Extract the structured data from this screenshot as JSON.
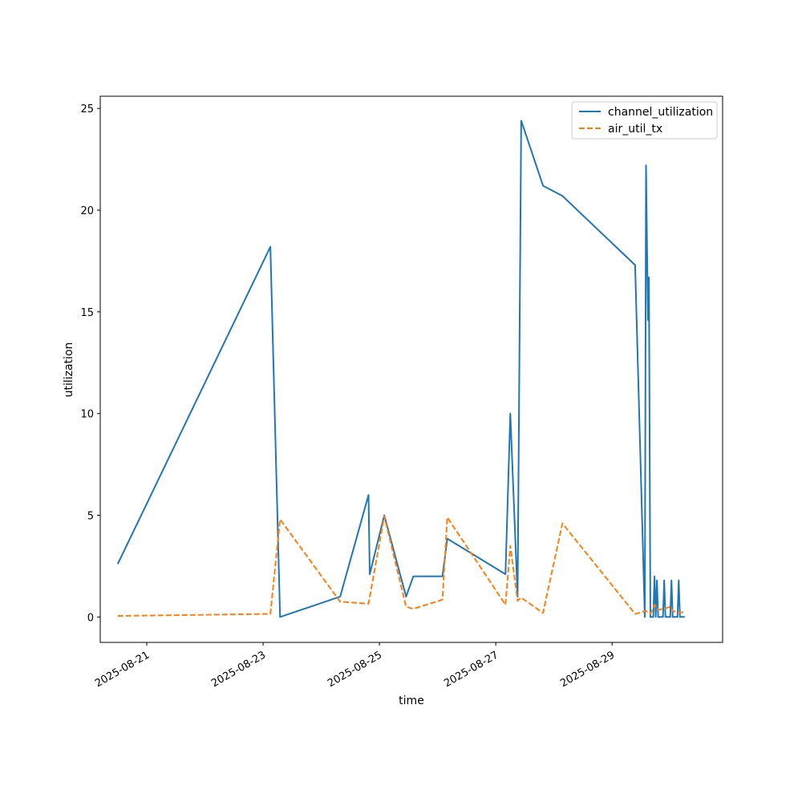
{
  "chart_data": {
    "type": "line",
    "title": "",
    "xlabel": "time",
    "ylabel": "utilization",
    "x_start": "2025-08-20",
    "x_end": "2025-08-30",
    "xlim": [
      "2025-08-20T04:48",
      "2025-08-30T21:36"
    ],
    "ylim": [
      -1.25,
      25.6
    ],
    "x_ticks": [
      "2025-08-21",
      "2025-08-23",
      "2025-08-25",
      "2025-08-27",
      "2025-08-29"
    ],
    "y_ticks": [
      0,
      5,
      10,
      15,
      20,
      25
    ],
    "grid": false,
    "legend_position": "top-right",
    "series": [
      {
        "name": "channel_utilization",
        "color": "#1f77b4",
        "dash": "solid",
        "points": [
          {
            "x": "2025-08-20T12:00",
            "y": 2.6
          },
          {
            "x": "2025-08-23T03:00",
            "y": 18.2
          },
          {
            "x": "2025-08-23T07:00",
            "y": 0.0
          },
          {
            "x": "2025-08-24T07:48",
            "y": 1.0
          },
          {
            "x": "2025-08-24T19:30",
            "y": 6.0
          },
          {
            "x": "2025-08-24T20:00",
            "y": 2.1
          },
          {
            "x": "2025-08-25T02:00",
            "y": 5.0
          },
          {
            "x": "2025-08-25T11:00",
            "y": 1.0
          },
          {
            "x": "2025-08-25T14:00",
            "y": 2.0
          },
          {
            "x": "2025-08-26T02:00",
            "y": 2.0
          },
          {
            "x": "2025-08-26T04:00",
            "y": 3.85
          },
          {
            "x": "2025-08-27T04:00",
            "y": 2.1
          },
          {
            "x": "2025-08-27T06:00",
            "y": 10.0
          },
          {
            "x": "2025-08-27T09:00",
            "y": 1.0
          },
          {
            "x": "2025-08-27T10:30",
            "y": 24.4
          },
          {
            "x": "2025-08-27T19:30",
            "y": 21.2
          },
          {
            "x": "2025-08-28T03:30",
            "y": 20.7
          },
          {
            "x": "2025-08-29T09:30",
            "y": 17.3
          },
          {
            "x": "2025-08-29T13:30",
            "y": 0.0
          },
          {
            "x": "2025-08-29T14:00",
            "y": 22.2
          },
          {
            "x": "2025-08-29T14:48",
            "y": 14.6
          },
          {
            "x": "2025-08-29T15:12",
            "y": 16.7
          },
          {
            "x": "2025-08-29T15:48",
            "y": 0.0
          },
          {
            "x": "2025-08-29T17:00",
            "y": 0.0
          },
          {
            "x": "2025-08-29T17:30",
            "y": 2.0
          },
          {
            "x": "2025-08-29T18:00",
            "y": 0.0
          },
          {
            "x": "2025-08-29T18:30",
            "y": 1.8
          },
          {
            "x": "2025-08-29T19:00",
            "y": 0.0
          },
          {
            "x": "2025-08-29T21:00",
            "y": 0.0
          },
          {
            "x": "2025-08-29T21:30",
            "y": 1.8
          },
          {
            "x": "2025-08-29T22:00",
            "y": 0.0
          },
          {
            "x": "2025-08-30T00:00",
            "y": 0.0
          },
          {
            "x": "2025-08-30T00:30",
            "y": 1.8
          },
          {
            "x": "2025-08-30T01:00",
            "y": 0.0
          },
          {
            "x": "2025-08-30T03:00",
            "y": 0.0
          },
          {
            "x": "2025-08-30T03:30",
            "y": 1.8
          },
          {
            "x": "2025-08-30T04:00",
            "y": 0.0
          },
          {
            "x": "2025-08-30T06:00",
            "y": 0.0
          }
        ]
      },
      {
        "name": "air_util_tx",
        "color": "#ff7f0e",
        "dash": "dashed",
        "points": [
          {
            "x": "2025-08-20T12:00",
            "y": 0.05
          },
          {
            "x": "2025-08-23T03:00",
            "y": 0.15
          },
          {
            "x": "2025-08-23T07:00",
            "y": 4.8
          },
          {
            "x": "2025-08-24T07:48",
            "y": 0.75
          },
          {
            "x": "2025-08-24T19:30",
            "y": 0.65
          },
          {
            "x": "2025-08-25T02:00",
            "y": 4.95
          },
          {
            "x": "2025-08-25T11:00",
            "y": 0.5
          },
          {
            "x": "2025-08-25T14:00",
            "y": 0.4
          },
          {
            "x": "2025-08-26T02:00",
            "y": 0.85
          },
          {
            "x": "2025-08-26T04:00",
            "y": 4.9
          },
          {
            "x": "2025-08-27T04:00",
            "y": 0.6
          },
          {
            "x": "2025-08-27T06:00",
            "y": 3.5
          },
          {
            "x": "2025-08-27T09:00",
            "y": 0.8
          },
          {
            "x": "2025-08-27T10:30",
            "y": 0.95
          },
          {
            "x": "2025-08-27T19:30",
            "y": 0.2
          },
          {
            "x": "2025-08-28T03:30",
            "y": 4.6
          },
          {
            "x": "2025-08-29T09:30",
            "y": 0.15
          },
          {
            "x": "2025-08-29T14:00",
            "y": 0.3
          },
          {
            "x": "2025-08-29T15:48",
            "y": 0.15
          },
          {
            "x": "2025-08-29T17:30",
            "y": 0.6
          },
          {
            "x": "2025-08-29T19:00",
            "y": 0.35
          },
          {
            "x": "2025-08-29T21:30",
            "y": 0.4
          },
          {
            "x": "2025-08-30T00:00",
            "y": 0.5
          },
          {
            "x": "2025-08-30T01:00",
            "y": 0.3
          },
          {
            "x": "2025-08-30T03:30",
            "y": 0.2
          },
          {
            "x": "2025-08-30T06:00",
            "y": 0.25
          }
        ]
      }
    ]
  }
}
